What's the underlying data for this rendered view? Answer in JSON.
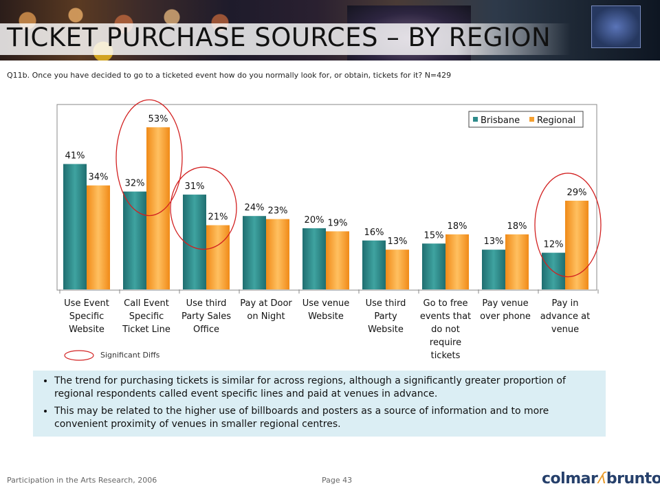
{
  "header": {
    "title": "TICKET PURCHASE SOURCES – BY REGION",
    "question": "Q11b. Once you have decided to go to a ticketed event how do you normally look for, or obtain, tickets for it? N=429"
  },
  "chart_data": {
    "type": "bar",
    "categories": [
      [
        "Use Event",
        "Specific",
        "Website"
      ],
      [
        "Call Event",
        "Specific",
        "Ticket Line"
      ],
      [
        "Use third",
        "Party Sales",
        "Office"
      ],
      [
        "Pay at Door",
        "on Night"
      ],
      [
        "Use venue",
        "Website"
      ],
      [
        "Use third",
        "Party",
        "Website"
      ],
      [
        "Go to free",
        "events that",
        "do not",
        "require",
        "tickets"
      ],
      [
        "Pay  venue",
        "over phone"
      ],
      [
        "Pay in",
        "advance at",
        "venue"
      ]
    ],
    "series": [
      {
        "name": "Brisbane",
        "values": [
          41,
          32,
          31,
          24,
          20,
          16,
          15,
          13,
          12
        ],
        "color": "#2e8b8b"
      },
      {
        "name": "Regional",
        "values": [
          34,
          53,
          21,
          23,
          19,
          13,
          18,
          18,
          29
        ],
        "color": "#f5a030"
      }
    ],
    "value_suffix": "%",
    "ylim": [
      0,
      60
    ],
    "legend_position": "top-right",
    "grid": false,
    "highlighted_categories": [
      1,
      2,
      8
    ],
    "highlight_color": "#d22020"
  },
  "legend": {
    "significant_label": "Significant Diffs"
  },
  "notes": [
    "The trend for purchasing tickets is similar for across regions, although a significantly greater proportion of regional respondents called event specific lines and paid at venues in advance.",
    "This may be related to the higher use of billboards and posters as a source of information and to more convenient proximity of venues in smaller regional centres."
  ],
  "footer": {
    "left": "Participation in the Arts Research, 2006",
    "page": "Page 43"
  },
  "logo": {
    "part1": "colmar",
    "part2": "brunton"
  }
}
